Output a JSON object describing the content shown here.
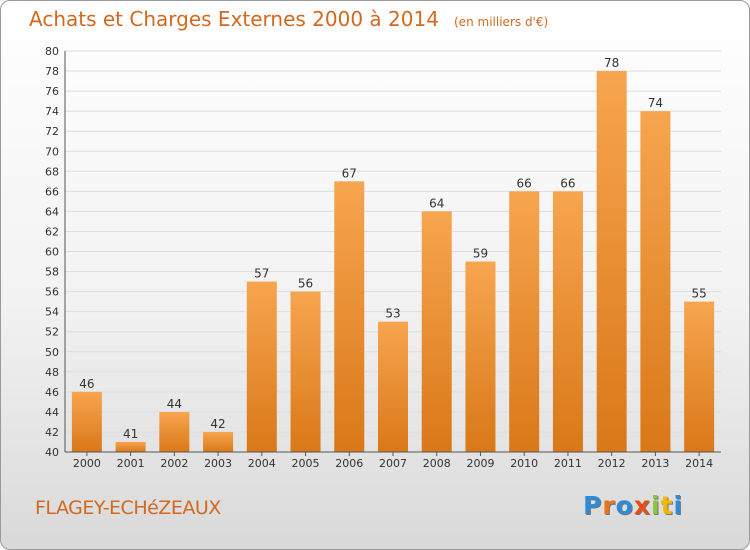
{
  "header": {
    "title": "Achats et Charges Externes 2000 à 2014",
    "subtitle": "(en milliers d'€)"
  },
  "footer": {
    "commune": "FLAGEY-ECHéZEAUX"
  },
  "logo": {
    "letters": [
      {
        "ch": "P",
        "color": "#2e8bd6"
      },
      {
        "ch": "r",
        "color": "#e8731a"
      },
      {
        "ch": "o",
        "color": "#2e8bd6"
      },
      {
        "ch": "x",
        "color": "#e84e1a"
      },
      {
        "ch": "i",
        "color": "#8cc63f"
      },
      {
        "ch": "t",
        "color": "#f2b705"
      },
      {
        "ch": "i",
        "color": "#2e8bd6"
      }
    ]
  },
  "colors": {
    "bar_top": "#f7a54f",
    "bar_bottom": "#d97818",
    "title": "#d2691e",
    "grid": "#dddddd"
  },
  "chart_data": {
    "type": "bar",
    "title": "Achats et Charges Externes 2000 à 2014",
    "subtitle": "(en milliers d'€)",
    "categories": [
      "2000",
      "2001",
      "2002",
      "2003",
      "2004",
      "2005",
      "2006",
      "2007",
      "2008",
      "2009",
      "2010",
      "2011",
      "2012",
      "2013",
      "2014"
    ],
    "values": [
      46,
      41,
      44,
      42,
      57,
      56,
      67,
      53,
      64,
      59,
      66,
      66,
      78,
      74,
      55
    ],
    "ylim": [
      40,
      80
    ],
    "ytick_step": 2,
    "xlabel": "",
    "ylabel": "",
    "grid": true,
    "legend": "none"
  }
}
